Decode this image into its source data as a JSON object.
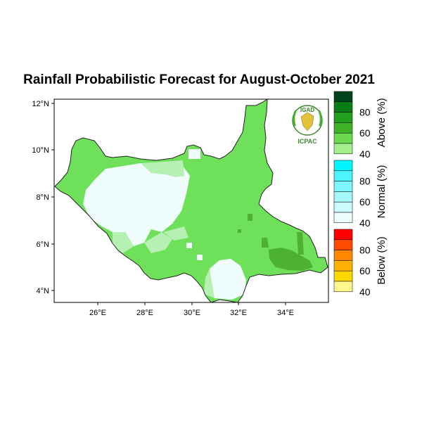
{
  "title": "Rainfall Probabilistic Forecast for August-October 2021",
  "map": {
    "lat_ticks": [
      "12°N",
      "10°N",
      "8°N",
      "6°N",
      "4°N"
    ],
    "lon_ticks": [
      "26°E",
      "28°E",
      "30°E",
      "32°E",
      "34°E"
    ],
    "lat_range": [
      3.5,
      12.2
    ],
    "lon_range": [
      24.2,
      35.8
    ]
  },
  "logo": {
    "top_text": "IGAD",
    "bottom_text": "ICPAC"
  },
  "legend": {
    "categories": [
      {
        "name": "Above (%)",
        "ticks": [
          "80",
          "60",
          "40"
        ],
        "colors": [
          "#00441b",
          "#0b7d17",
          "#229f1f",
          "#41b328",
          "#6cd94f",
          "#a4f08e"
        ]
      },
      {
        "name": "Normal (%)",
        "ticks": [
          "80",
          "60",
          "40"
        ],
        "colors": [
          "#00f5ff",
          "#4cf4fb",
          "#7ff6fb",
          "#a6f8fb",
          "#cbfbfc",
          "#eefefe"
        ]
      },
      {
        "name": "Below (%)",
        "ticks": [
          "80",
          "60",
          "40"
        ],
        "colors": [
          "#ff0000",
          "#ff4a00",
          "#ff8700",
          "#ffb000",
          "#ffd800",
          "#fff68f"
        ]
      }
    ]
  },
  "colors": {
    "above_40": "#6fe05a",
    "above_50": "#4db22f",
    "normal_40": "#effdfc",
    "normal_mix": "#b6f0b2",
    "border": "#222222"
  }
}
